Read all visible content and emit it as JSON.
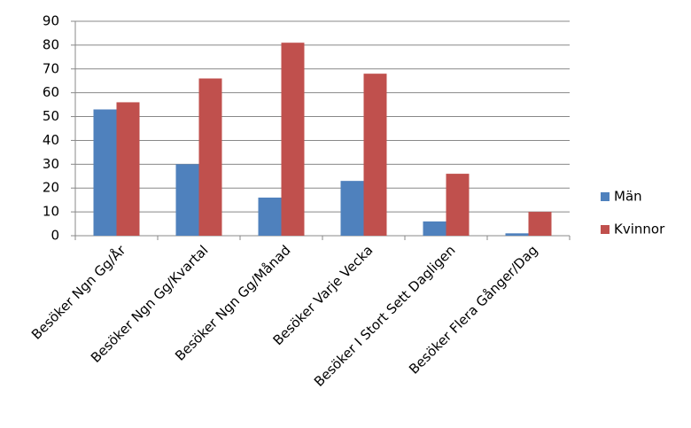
{
  "chart_data": {
    "type": "bar",
    "categories": [
      "Besöker Ngn Gg/År",
      "Besöker Ngn Gg/Kvartal",
      "Besöker Ngn Gg/Månad",
      "Besöker Varje Vecka",
      "Besöker I Stort Sett Dagligen",
      "Besöker Flera Gånger/Dag"
    ],
    "series": [
      {
        "name": "Män",
        "color": "#4f81bd",
        "values": [
          53,
          30,
          16,
          23,
          6,
          1
        ]
      },
      {
        "name": "Kvinnor",
        "color": "#c0504d",
        "values": [
          56,
          66,
          81,
          68,
          26,
          10
        ]
      }
    ],
    "ylim": [
      0,
      90
    ],
    "yticks": [
      0,
      10,
      20,
      30,
      40,
      50,
      60,
      70,
      80,
      90
    ],
    "grid": true,
    "legend": "right"
  }
}
